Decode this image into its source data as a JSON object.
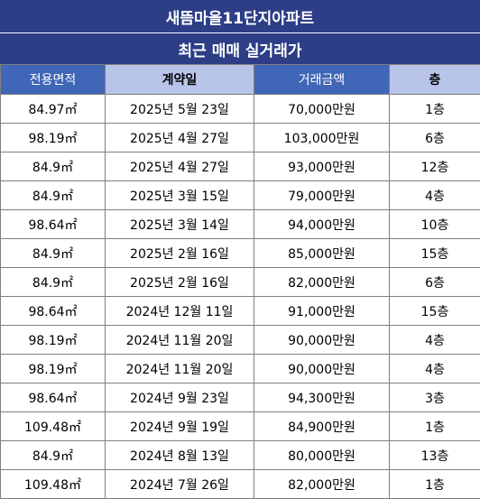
{
  "title": "새뜸마을11단지아파트",
  "subtitle": "최근 매매 실거래가",
  "columns": [
    "전용면적",
    "계약일",
    "거래금액",
    "층"
  ],
  "rows": [
    [
      "84.97㎡",
      "2025년 5월 23일",
      "70,000만원",
      "1층"
    ],
    [
      "98.19㎡",
      "2025년 4월 27일",
      "103,000만원",
      "6층"
    ],
    [
      "84.9㎡",
      "2025년 4월 27일",
      "93,000만원",
      "12층"
    ],
    [
      "84.9㎡",
      "2025년 3월 15일",
      "79,000만원",
      "4층"
    ],
    [
      "98.64㎡",
      "2025년 3월 14일",
      "94,000만원",
      "10층"
    ],
    [
      "84.9㎡",
      "2025년 2월 16일",
      "85,000만원",
      "15층"
    ],
    [
      "84.9㎡",
      "2025년 2월 16일",
      "82,000만원",
      "6층"
    ],
    [
      "98.64㎡",
      "2024년 12월 11일",
      "91,000만원",
      "15층"
    ],
    [
      "98.19㎡",
      "2024년 11월 20일",
      "90,000만원",
      "4층"
    ],
    [
      "98.19㎡",
      "2024년 11월 20일",
      "90,000만원",
      "4층"
    ],
    [
      "98.64㎡",
      "2024년 9월 23일",
      "94,300만원",
      "3층"
    ],
    [
      "109.48㎡",
      "2024년 9월 19일",
      "84,900만원",
      "1층"
    ],
    [
      "84.9㎡",
      "2024년 8월 13일",
      "80,000만원",
      "13층"
    ],
    [
      "109.48㎡",
      "2024년 7월 26일",
      "82,000만원",
      "1층"
    ]
  ],
  "colors": {
    "header_bar": "#2d3e87",
    "header_dark": "#4066b8",
    "header_light": "#b8c4e8"
  }
}
